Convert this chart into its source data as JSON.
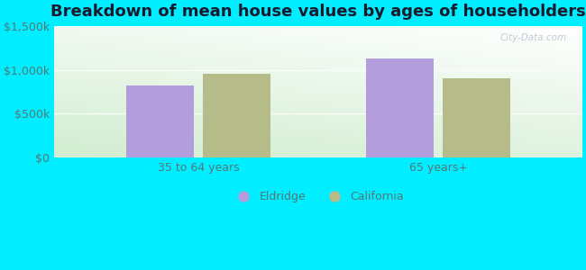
{
  "title": "Breakdown of mean house values by ages of householders",
  "categories": [
    "35 to 64 years",
    "65 years+"
  ],
  "eldridge_values": [
    820000,
    1130000
  ],
  "california_values": [
    960000,
    910000
  ],
  "eldridge_color": "#b39ddb",
  "california_color": "#b5bc8a",
  "ylim": [
    0,
    1500000
  ],
  "yticks": [
    0,
    500000,
    1000000,
    1500000
  ],
  "ytick_labels": [
    "$0",
    "$500k",
    "$1,000k",
    "$1,500k"
  ],
  "background_color": "#00eeff",
  "legend_labels": [
    "Eldridge",
    "California"
  ],
  "bar_width": 0.28,
  "watermark": "City-Data.com",
  "title_fontsize": 13,
  "axis_label_fontsize": 9,
  "legend_fontsize": 9,
  "tick_color": "#557777",
  "title_color": "#1a1a2e"
}
